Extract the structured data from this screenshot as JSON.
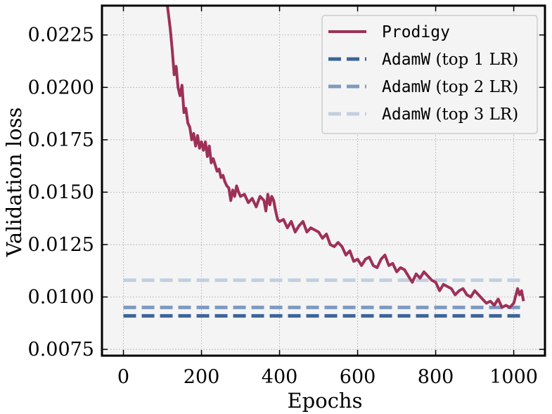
{
  "chart_data": {
    "type": "line",
    "xlabel": "Epochs",
    "ylabel": "Validation loss",
    "xlim": [
      -55,
      1080
    ],
    "ylim": [
      0.0072,
      0.0239
    ],
    "xticks": [
      "0",
      "200",
      "400",
      "600",
      "800",
      "1000"
    ],
    "xtick_values": [
      0,
      200,
      400,
      600,
      800,
      1000
    ],
    "yticks": [
      "0.0075",
      "0.0100",
      "0.0125",
      "0.0150",
      "0.0175",
      "0.0200",
      "0.0225"
    ],
    "ytick_values": [
      0.0075,
      0.01,
      0.0125,
      0.015,
      0.0175,
      0.02,
      0.0225
    ],
    "grid": true,
    "legend_position": "top-right",
    "series": [
      {
        "name_code": "Prodigy",
        "name_rest": "",
        "style": "solid",
        "color": "#9e3058",
        "x": [
          112,
          120,
          125,
          130,
          135,
          140,
          145,
          150,
          155,
          160,
          165,
          170,
          175,
          180,
          185,
          190,
          195,
          200,
          205,
          210,
          215,
          220,
          225,
          230,
          235,
          240,
          245,
          250,
          255,
          260,
          265,
          270,
          275,
          280,
          285,
          290,
          295,
          300,
          310,
          320,
          330,
          340,
          350,
          360,
          365,
          370,
          375,
          380,
          385,
          390,
          395,
          400,
          410,
          420,
          430,
          440,
          450,
          460,
          470,
          480,
          490,
          500,
          510,
          520,
          530,
          540,
          550,
          560,
          570,
          580,
          590,
          600,
          610,
          620,
          630,
          640,
          650,
          660,
          670,
          680,
          690,
          700,
          710,
          720,
          730,
          740,
          750,
          760,
          770,
          780,
          790,
          800,
          810,
          820,
          830,
          840,
          850,
          860,
          870,
          880,
          890,
          900,
          910,
          920,
          930,
          940,
          950,
          960,
          970,
          980,
          990,
          1000,
          1010,
          1015,
          1020,
          1025
        ],
        "y": [
          0.024,
          0.0228,
          0.0218,
          0.0206,
          0.021,
          0.02,
          0.0196,
          0.0201,
          0.0188,
          0.019,
          0.0183,
          0.0181,
          0.0175,
          0.0178,
          0.0172,
          0.0177,
          0.0171,
          0.0174,
          0.017,
          0.0174,
          0.0167,
          0.0172,
          0.0164,
          0.0166,
          0.0163,
          0.016,
          0.0161,
          0.0157,
          0.0158,
          0.0155,
          0.0153,
          0.0152,
          0.0146,
          0.0151,
          0.0148,
          0.0153,
          0.015,
          0.0148,
          0.0149,
          0.0145,
          0.0147,
          0.0143,
          0.0148,
          0.0146,
          0.0141,
          0.0149,
          0.0144,
          0.0148,
          0.0146,
          0.0141,
          0.0137,
          0.0136,
          0.0137,
          0.0133,
          0.0136,
          0.0131,
          0.0134,
          0.0136,
          0.0131,
          0.0133,
          0.0132,
          0.0131,
          0.0128,
          0.013,
          0.0125,
          0.0124,
          0.0126,
          0.0124,
          0.012,
          0.0122,
          0.0117,
          0.0118,
          0.0115,
          0.0118,
          0.0119,
          0.0115,
          0.0114,
          0.0118,
          0.012,
          0.0115,
          0.0116,
          0.0112,
          0.0114,
          0.0113,
          0.011,
          0.0107,
          0.0111,
          0.0109,
          0.0112,
          0.011,
          0.0108,
          0.0107,
          0.0103,
          0.0106,
          0.0105,
          0.0104,
          0.0101,
          0.0103,
          0.0104,
          0.0101,
          0.01,
          0.0103,
          0.0101,
          0.0099,
          0.0097,
          0.0098,
          0.0096,
          0.0099,
          0.0095,
          0.0096,
          0.0095,
          0.0097,
          0.0104,
          0.0101,
          0.0103,
          0.0098
        ]
      },
      {
        "name_code": "AdamW",
        "name_rest": " (top 1 LR)",
        "style": "dashed",
        "color": "#3b6499",
        "x": [
          0,
          1020
        ],
        "y": [
          0.0091,
          0.0091
        ]
      },
      {
        "name_code": "AdamW",
        "name_rest": " (top 2 LR)",
        "style": "dashed",
        "color": "#7e9ac0",
        "x": [
          0,
          1020
        ],
        "y": [
          0.0095,
          0.0095
        ]
      },
      {
        "name_code": "AdamW",
        "name_rest": " (top 3 LR)",
        "style": "dashed",
        "color": "#c2cfe0",
        "x": [
          0,
          1020
        ],
        "y": [
          0.0108,
          0.0108
        ]
      }
    ]
  }
}
